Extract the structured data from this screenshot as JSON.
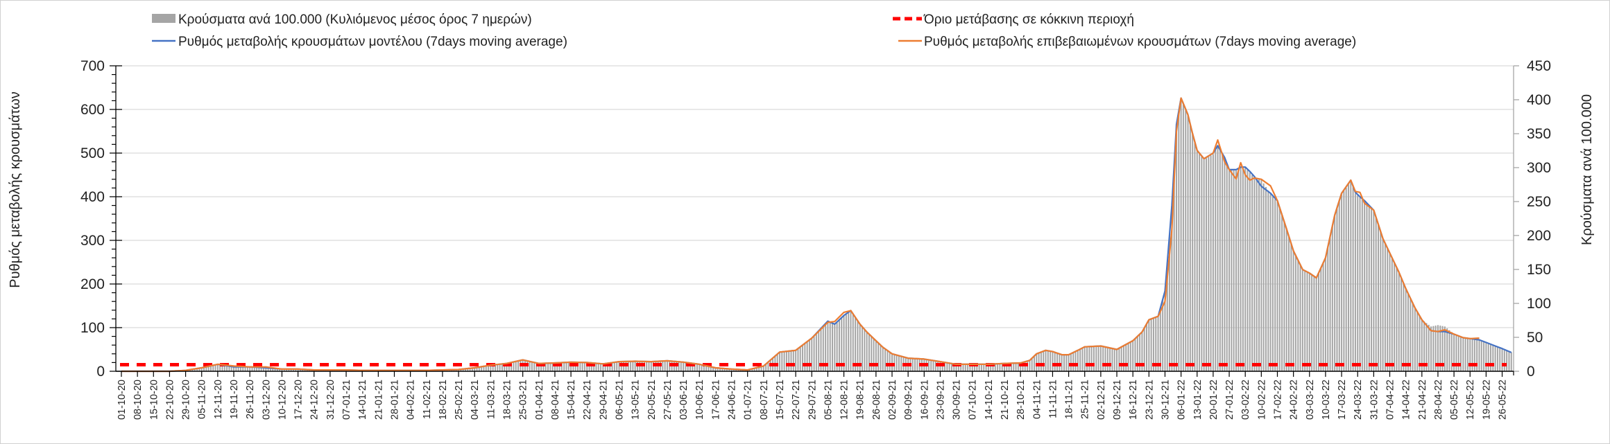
{
  "chart_data": {
    "type": "bar+line",
    "legend": {
      "cases_bar": "Κρούσματα ανά 100.000 (Κυλιόμενος μέσος όρος 7 ημερών)",
      "threshold": "Όριο μετάβασης σε κόκκινη περιοχή",
      "model_line": "Ρυθμός μεταβολής κρουσμάτων μοντέλου (7days moving average)",
      "confirmed_line": "Ρυθμός μεταβολής επιβεβαιωμένων κρουσμάτων (7days moving average)"
    },
    "legend_placement": "top",
    "ylabel_left": "Ρυθμός μεταβολής κρουσμάτων",
    "ylabel_right": "Κρούσματα ανά 100.000",
    "ylim_left": [
      0,
      700
    ],
    "ylim_right": [
      0,
      450
    ],
    "yticks_left": [
      "0",
      "100",
      "200",
      "300",
      "400",
      "500",
      "600",
      "700"
    ],
    "yticks_right": [
      "0",
      "50",
      "100",
      "150",
      "200",
      "250",
      "300",
      "350",
      "400",
      "450"
    ],
    "grid": true,
    "x_start": "01-10-20",
    "x_end": "31-05-22",
    "threshold_value_left": 15,
    "colors": {
      "cases": "#A5A5A5",
      "model": "#4472C4",
      "confirmed": "#ED7D31",
      "threshold": "#FF0000",
      "grid": "#D9D9D9"
    },
    "xtick_labels": [
      "01-10-20",
      "08-10-20",
      "15-10-20",
      "22-10-20",
      "29-10-20",
      "05-11-20",
      "12-11-20",
      "19-11-20",
      "26-11-20",
      "03-12-20",
      "10-12-20",
      "17-12-20",
      "24-12-20",
      "31-12-20",
      "07-01-21",
      "14-01-21",
      "21-01-21",
      "28-01-21",
      "04-02-21",
      "11-02-21",
      "18-02-21",
      "25-02-21",
      "04-03-21",
      "11-03-21",
      "18-03-21",
      "25-03-21",
      "01-04-21",
      "08-04-21",
      "15-04-21",
      "22-04-21",
      "29-04-21",
      "06-05-21",
      "13-05-21",
      "20-05-21",
      "27-05-21",
      "03-06-21",
      "10-06-21",
      "17-06-21",
      "24-06-21",
      "01-07-21",
      "08-07-21",
      "15-07-21",
      "22-07-21",
      "29-07-21",
      "05-08-21",
      "12-08-21",
      "19-08-21",
      "26-08-21",
      "02-09-21",
      "09-09-21",
      "16-09-21",
      "23-09-21",
      "30-09-21",
      "07-10-21",
      "14-10-21",
      "21-10-21",
      "28-10-21",
      "04-11-21",
      "11-11-21",
      "18-11-21",
      "25-11-21",
      "02-12-21",
      "09-12-21",
      "16-12-21",
      "23-12-21",
      "30-12-21",
      "06-01-22",
      "13-01-22",
      "20-01-22",
      "27-01-22",
      "03-02-22",
      "10-02-22",
      "17-02-22",
      "24-02-22",
      "03-03-22",
      "10-03-22",
      "17-03-22",
      "24-03-22",
      "31-03-22",
      "07-04-22",
      "14-04-22",
      "21-04-22",
      "28-04-22",
      "05-05-22",
      "12-05-22",
      "19-05-22",
      "26-05-22"
    ],
    "points": [
      {
        "date": "01-10-20",
        "model": 0,
        "confirmed": 0,
        "cases": 0
      },
      {
        "date": "22-10-20",
        "model": 0,
        "confirmed": 0,
        "cases": 0
      },
      {
        "date": "29-10-20",
        "model": 2,
        "confirmed": 2,
        "cases": 1
      },
      {
        "date": "05-11-20",
        "model": 8,
        "confirmed": 8,
        "cases": 5
      },
      {
        "date": "12-11-20",
        "model": 16,
        "confirmed": 16,
        "cases": 10
      },
      {
        "date": "19-11-20",
        "model": 10,
        "confirmed": 12,
        "cases": 6
      },
      {
        "date": "26-11-20",
        "model": 10,
        "confirmed": 10,
        "cases": 6
      },
      {
        "date": "03-12-20",
        "model": 8,
        "confirmed": 10,
        "cases": 5
      },
      {
        "date": "10-12-20",
        "model": 5,
        "confirmed": 5,
        "cases": 3
      },
      {
        "date": "17-12-20",
        "model": 5,
        "confirmed": 5,
        "cases": 3
      },
      {
        "date": "24-12-20",
        "model": 3,
        "confirmed": 3,
        "cases": 2
      },
      {
        "date": "31-12-20",
        "model": 3,
        "confirmed": 3,
        "cases": 2
      },
      {
        "date": "07-01-21",
        "model": 3,
        "confirmed": 3,
        "cases": 2
      },
      {
        "date": "14-01-21",
        "model": 2,
        "confirmed": 2,
        "cases": 1
      },
      {
        "date": "21-01-21",
        "model": 2,
        "confirmed": 2,
        "cases": 1
      },
      {
        "date": "28-01-21",
        "model": 2,
        "confirmed": 2,
        "cases": 1
      },
      {
        "date": "04-02-21",
        "model": 2,
        "confirmed": 2,
        "cases": 1
      },
      {
        "date": "11-02-21",
        "model": 2,
        "confirmed": 2,
        "cases": 1
      },
      {
        "date": "18-02-21",
        "model": 3,
        "confirmed": 3,
        "cases": 2
      },
      {
        "date": "25-02-21",
        "model": 4,
        "confirmed": 4,
        "cases": 3
      },
      {
        "date": "04-03-21",
        "model": 8,
        "confirmed": 8,
        "cases": 5
      },
      {
        "date": "11-03-21",
        "model": 14,
        "confirmed": 14,
        "cases": 9
      },
      {
        "date": "18-03-21",
        "model": 18,
        "confirmed": 18,
        "cases": 12
      },
      {
        "date": "25-03-21",
        "model": 26,
        "confirmed": 26,
        "cases": 17
      },
      {
        "date": "01-04-21",
        "model": 18,
        "confirmed": 18,
        "cases": 12
      },
      {
        "date": "08-04-21",
        "model": 19,
        "confirmed": 19,
        "cases": 12
      },
      {
        "date": "15-04-21",
        "model": 21,
        "confirmed": 21,
        "cases": 13
      },
      {
        "date": "22-04-21",
        "model": 20,
        "confirmed": 20,
        "cases": 13
      },
      {
        "date": "29-04-21",
        "model": 17,
        "confirmed": 17,
        "cases": 11
      },
      {
        "date": "06-05-21",
        "model": 22,
        "confirmed": 22,
        "cases": 14
      },
      {
        "date": "13-05-21",
        "model": 23,
        "confirmed": 23,
        "cases": 15
      },
      {
        "date": "20-05-21",
        "model": 22,
        "confirmed": 22,
        "cases": 14
      },
      {
        "date": "27-05-21",
        "model": 24,
        "confirmed": 24,
        "cases": 15
      },
      {
        "date": "03-06-21",
        "model": 21,
        "confirmed": 21,
        "cases": 13
      },
      {
        "date": "10-06-21",
        "model": 16,
        "confirmed": 16,
        "cases": 10
      },
      {
        "date": "17-06-21",
        "model": 8,
        "confirmed": 8,
        "cases": 5
      },
      {
        "date": "24-06-21",
        "model": 5,
        "confirmed": 5,
        "cases": 3
      },
      {
        "date": "01-07-21",
        "model": 3,
        "confirmed": 3,
        "cases": 2
      },
      {
        "date": "08-07-21",
        "model": 12,
        "confirmed": 12,
        "cases": 8
      },
      {
        "date": "15-07-21",
        "model": 44,
        "confirmed": 44,
        "cases": 28
      },
      {
        "date": "22-07-21",
        "model": 48,
        "confirmed": 48,
        "cases": 31
      },
      {
        "date": "29-07-21",
        "model": 76,
        "confirmed": 76,
        "cases": 49
      },
      {
        "date": "05-08-21",
        "model": 115,
        "confirmed": 112,
        "cases": 74
      },
      {
        "date": "08-08-21",
        "model": 108,
        "confirmed": 114,
        "cases": 69
      },
      {
        "date": "12-08-21",
        "model": 128,
        "confirmed": 135,
        "cases": 82
      },
      {
        "date": "15-08-21",
        "model": 139,
        "confirmed": 139,
        "cases": 89
      },
      {
        "date": "19-08-21",
        "model": 108,
        "confirmed": 108,
        "cases": 69
      },
      {
        "date": "22-08-21",
        "model": 90,
        "confirmed": 90,
        "cases": 58
      },
      {
        "date": "26-08-21",
        "model": 70,
        "confirmed": 70,
        "cases": 45
      },
      {
        "date": "29-08-21",
        "model": 55,
        "confirmed": 55,
        "cases": 35
      },
      {
        "date": "02-09-21",
        "model": 40,
        "confirmed": 40,
        "cases": 26
      },
      {
        "date": "09-09-21",
        "model": 30,
        "confirmed": 30,
        "cases": 19
      },
      {
        "date": "16-09-21",
        "model": 28,
        "confirmed": 28,
        "cases": 18
      },
      {
        "date": "23-09-21",
        "model": 22,
        "confirmed": 22,
        "cases": 14
      },
      {
        "date": "30-09-21",
        "model": 16,
        "confirmed": 16,
        "cases": 10
      },
      {
        "date": "07-10-21",
        "model": 16,
        "confirmed": 16,
        "cases": 10
      },
      {
        "date": "14-10-21",
        "model": 16,
        "confirmed": 16,
        "cases": 10
      },
      {
        "date": "21-10-21",
        "model": 18,
        "confirmed": 18,
        "cases": 12
      },
      {
        "date": "28-10-21",
        "model": 19,
        "confirmed": 19,
        "cases": 12
      },
      {
        "date": "01-11-21",
        "model": 25,
        "confirmed": 25,
        "cases": 16
      },
      {
        "date": "04-11-21",
        "model": 40,
        "confirmed": 40,
        "cases": 26
      },
      {
        "date": "08-11-21",
        "model": 48,
        "confirmed": 48,
        "cases": 31
      },
      {
        "date": "11-11-21",
        "model": 45,
        "confirmed": 45,
        "cases": 29
      },
      {
        "date": "15-11-21",
        "model": 38,
        "confirmed": 38,
        "cases": 24
      },
      {
        "date": "18-11-21",
        "model": 38,
        "confirmed": 38,
        "cases": 24
      },
      {
        "date": "22-11-21",
        "model": 48,
        "confirmed": 48,
        "cases": 31
      },
      {
        "date": "25-11-21",
        "model": 56,
        "confirmed": 56,
        "cases": 36
      },
      {
        "date": "02-12-21",
        "model": 58,
        "confirmed": 58,
        "cases": 37
      },
      {
        "date": "09-12-21",
        "model": 50,
        "confirmed": 50,
        "cases": 32
      },
      {
        "date": "16-12-21",
        "model": 70,
        "confirmed": 70,
        "cases": 45
      },
      {
        "date": "20-12-21",
        "model": 90,
        "confirmed": 90,
        "cases": 58
      },
      {
        "date": "23-12-21",
        "model": 118,
        "confirmed": 118,
        "cases": 76
      },
      {
        "date": "27-12-21",
        "model": 126,
        "confirmed": 126,
        "cases": 81
      },
      {
        "date": "30-12-21",
        "model": 184,
        "confirmed": 160,
        "cases": 118
      },
      {
        "date": "02-01-22",
        "model": 380,
        "confirmed": 325,
        "cases": 244
      },
      {
        "date": "04-01-22",
        "model": 566,
        "confirmed": 550,
        "cases": 362
      },
      {
        "date": "06-01-22",
        "model": 626,
        "confirmed": 626,
        "cases": 401
      },
      {
        "date": "09-01-22",
        "model": 588,
        "confirmed": 588,
        "cases": 376
      },
      {
        "date": "11-01-22",
        "model": 545,
        "confirmed": 545,
        "cases": 349
      },
      {
        "date": "13-01-22",
        "model": 506,
        "confirmed": 506,
        "cases": 324
      },
      {
        "date": "16-01-22",
        "model": 487,
        "confirmed": 487,
        "cases": 312
      },
      {
        "date": "20-01-22",
        "model": 500,
        "confirmed": 500,
        "cases": 320
      },
      {
        "date": "22-01-22",
        "model": 517,
        "confirmed": 530,
        "cases": 331
      },
      {
        "date": "25-01-22",
        "model": 490,
        "confirmed": 480,
        "cases": 314
      },
      {
        "date": "27-01-22",
        "model": 462,
        "confirmed": 462,
        "cases": 296
      },
      {
        "date": "30-01-22",
        "model": 462,
        "confirmed": 441,
        "cases": 296
      },
      {
        "date": "01-02-22",
        "model": 468,
        "confirmed": 478,
        "cases": 300
      },
      {
        "date": "03-02-22",
        "model": 468,
        "confirmed": 450,
        "cases": 300
      },
      {
        "date": "05-02-22",
        "model": 458,
        "confirmed": 438,
        "cases": 293
      },
      {
        "date": "07-02-22",
        "model": 446,
        "confirmed": 443,
        "cases": 285
      },
      {
        "date": "10-02-22",
        "model": 424,
        "confirmed": 440,
        "cases": 282
      },
      {
        "date": "14-02-22",
        "model": 408,
        "confirmed": 425,
        "cases": 261
      },
      {
        "date": "17-02-22",
        "model": 391,
        "confirmed": 391,
        "cases": 250
      },
      {
        "date": "21-02-22",
        "model": 326,
        "confirmed": 326,
        "cases": 209
      },
      {
        "date": "24-02-22",
        "model": 276,
        "confirmed": 276,
        "cases": 177
      },
      {
        "date": "28-02-22",
        "model": 233,
        "confirmed": 233,
        "cases": 149
      },
      {
        "date": "03-03-22",
        "model": 225,
        "confirmed": 225,
        "cases": 144
      },
      {
        "date": "06-03-22",
        "model": 214,
        "confirmed": 214,
        "cases": 137
      },
      {
        "date": "10-03-22",
        "model": 260,
        "confirmed": 260,
        "cases": 166
      },
      {
        "date": "14-03-22",
        "model": 358,
        "confirmed": 358,
        "cases": 229
      },
      {
        "date": "17-03-22",
        "model": 408,
        "confirmed": 408,
        "cases": 261
      },
      {
        "date": "21-03-22",
        "model": 438,
        "confirmed": 438,
        "cases": 280
      },
      {
        "date": "23-03-22",
        "model": 410,
        "confirmed": 412,
        "cases": 262
      },
      {
        "date": "25-03-22",
        "model": 400,
        "confirmed": 410,
        "cases": 256
      },
      {
        "date": "27-03-22",
        "model": 391,
        "confirmed": 385,
        "cases": 250
      },
      {
        "date": "31-03-22",
        "model": 369,
        "confirmed": 369,
        "cases": 236
      },
      {
        "date": "04-04-22",
        "model": 304,
        "confirmed": 304,
        "cases": 195
      },
      {
        "date": "07-04-22",
        "model": 271,
        "confirmed": 271,
        "cases": 173
      },
      {
        "date": "11-04-22",
        "model": 227,
        "confirmed": 227,
        "cases": 145
      },
      {
        "date": "14-04-22",
        "model": 189,
        "confirmed": 189,
        "cases": 121
      },
      {
        "date": "18-04-22",
        "model": 145,
        "confirmed": 145,
        "cases": 93
      },
      {
        "date": "21-04-22",
        "model": 118,
        "confirmed": 118,
        "cases": 76
      },
      {
        "date": "25-04-22",
        "model": 93,
        "confirmed": 93,
        "cases": 66
      },
      {
        "date": "28-04-22",
        "model": 91,
        "confirmed": 91,
        "cases": 68
      },
      {
        "date": "01-05-22",
        "model": 91,
        "confirmed": 95,
        "cases": 66
      },
      {
        "date": "05-05-22",
        "model": 85,
        "confirmed": 85,
        "cases": 55
      },
      {
        "date": "09-05-22",
        "model": 77,
        "confirmed": 77,
        "cases": 49
      },
      {
        "date": "12-05-22",
        "model": 75,
        "confirmed": 75,
        "cases": 48
      },
      {
        "date": "16-05-22",
        "model": 72,
        "confirmed": 76,
        "cases": 46
      },
      {
        "date": "19-05-22",
        "model": 66,
        "confirmed": null,
        "cases": 42
      },
      {
        "date": "23-05-22",
        "model": 58,
        "confirmed": null,
        "cases": 37
      },
      {
        "date": "26-05-22",
        "model": 52,
        "confirmed": null,
        "cases": 33
      },
      {
        "date": "30-05-22",
        "model": 43,
        "confirmed": null,
        "cases": 28
      }
    ]
  }
}
